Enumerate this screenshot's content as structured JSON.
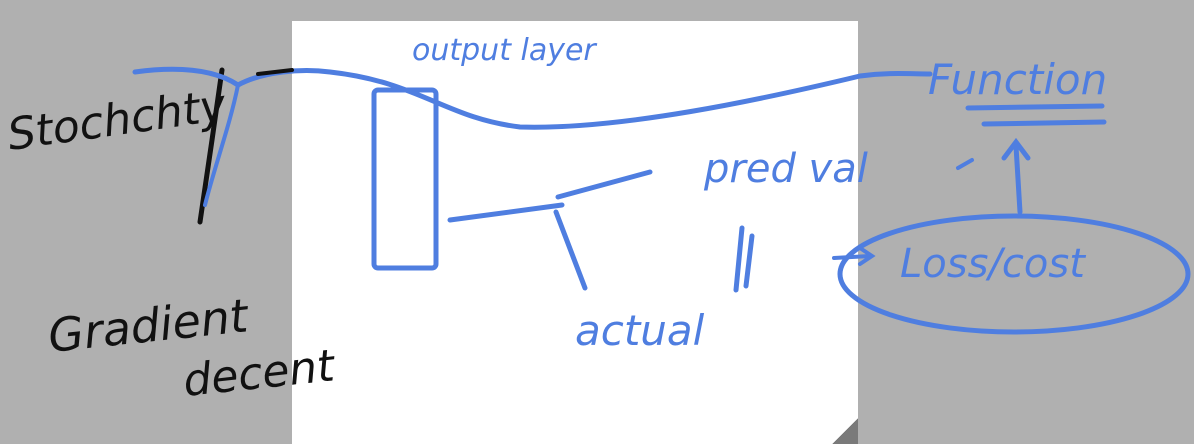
{
  "colors": {
    "background": "#b0b0b0",
    "page": "#ffffff",
    "ink_black": "#111111",
    "ink_blue": "#4f7ee0"
  },
  "notes": {
    "stochastic": "Stochchty",
    "gradient": "Gradient",
    "descent": "decent",
    "output_layer": "output layer",
    "function": "Function",
    "pred_val": "pred val",
    "loss_cost": "Loss/cost",
    "actual": "actual"
  }
}
